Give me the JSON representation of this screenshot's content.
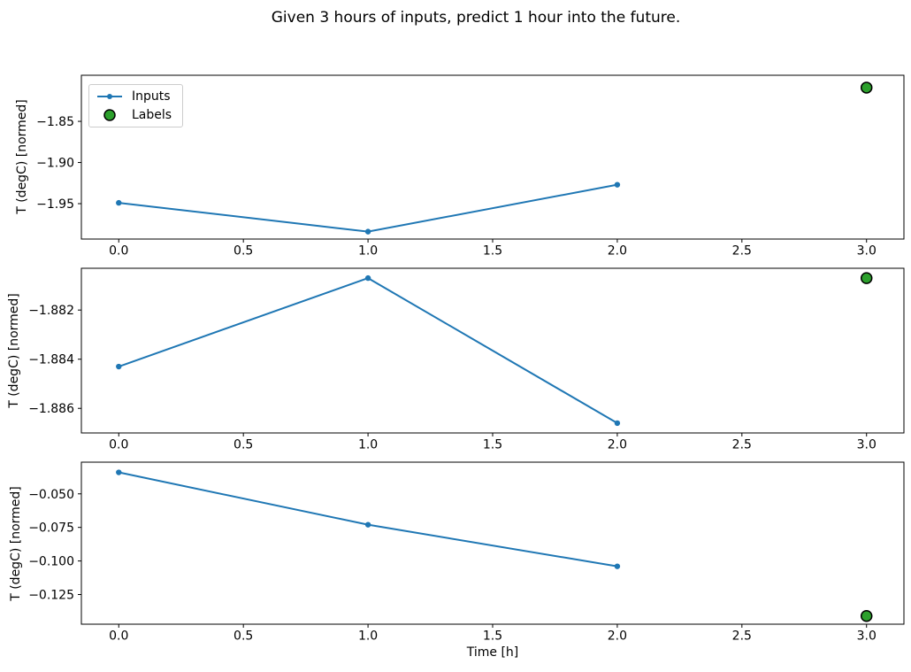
{
  "figure": {
    "title": "Given 3 hours of inputs, predict 1 hour into the future.",
    "xlabel": "Time [h]"
  },
  "colors": {
    "inputs_line": "#1f77b4",
    "labels_fill": "#2ca02c",
    "labels_edge": "#000000",
    "axis": "#000000",
    "text": "#000000",
    "legend_border": "#cccccc",
    "background": "#ffffff"
  },
  "legend": {
    "position": "upper left",
    "items": [
      {
        "label": "Inputs",
        "marker": "line-dot"
      },
      {
        "label": "Labels",
        "marker": "filled-circle"
      }
    ]
  },
  "chart_data": [
    {
      "type": "line",
      "ylabel": "T (degC) [normed]",
      "x": [
        0,
        1,
        2
      ],
      "series": [
        {
          "name": "Inputs",
          "values": [
            -1.949,
            -1.984,
            -1.927
          ]
        }
      ],
      "labels_scatter": {
        "name": "Labels",
        "x": 3,
        "y": -1.809
      },
      "xlim": [
        -0.15,
        3.15
      ],
      "ylim": [
        -1.993,
        -1.794
      ],
      "xticks": [
        0,
        0.5,
        1,
        1.5,
        2,
        2.5,
        3
      ],
      "xtick_labels": [
        "0.0",
        "0.5",
        "1.0",
        "1.5",
        "2.0",
        "2.5",
        "3.0"
      ],
      "yticks": [
        -1.85,
        -1.9,
        -1.95
      ],
      "ytick_labels": [
        "−1.85",
        "−1.90",
        "−1.95"
      ],
      "grid": false,
      "has_legend": true
    },
    {
      "type": "line",
      "ylabel": "T (degC) [normed]",
      "x": [
        0,
        1,
        2
      ],
      "series": [
        {
          "name": "Inputs",
          "values": [
            -1.8843,
            -1.8807,
            -1.8866
          ]
        }
      ],
      "labels_scatter": {
        "name": "Labels",
        "x": 3,
        "y": -1.8807
      },
      "xlim": [
        -0.15,
        3.15
      ],
      "ylim": [
        -1.887,
        -1.8803
      ],
      "xticks": [
        0,
        0.5,
        1,
        1.5,
        2,
        2.5,
        3
      ],
      "xtick_labels": [
        "0.0",
        "0.5",
        "1.0",
        "1.5",
        "2.0",
        "2.5",
        "3.0"
      ],
      "yticks": [
        -1.882,
        -1.884,
        -1.886
      ],
      "ytick_labels": [
        "−1.882",
        "−1.884",
        "−1.886"
      ],
      "grid": false,
      "has_legend": false
    },
    {
      "type": "line",
      "ylabel": "T (degC) [normed]",
      "x": [
        0,
        1,
        2
      ],
      "series": [
        {
          "name": "Inputs",
          "values": [
            -0.034,
            -0.073,
            -0.104
          ]
        }
      ],
      "labels_scatter": {
        "name": "Labels",
        "x": 3,
        "y": -0.141
      },
      "xlim": [
        -0.15,
        3.15
      ],
      "ylim": [
        -0.1471,
        -0.0264
      ],
      "xticks": [
        0,
        0.5,
        1,
        1.5,
        2,
        2.5,
        3
      ],
      "xtick_labels": [
        "0.0",
        "0.5",
        "1.0",
        "1.5",
        "2.0",
        "2.5",
        "3.0"
      ],
      "yticks": [
        -0.05,
        -0.075,
        -0.1,
        -0.125
      ],
      "ytick_labels": [
        "−0.050",
        "−0.075",
        "−0.100",
        "−0.125"
      ],
      "grid": false,
      "has_legend": false
    }
  ]
}
